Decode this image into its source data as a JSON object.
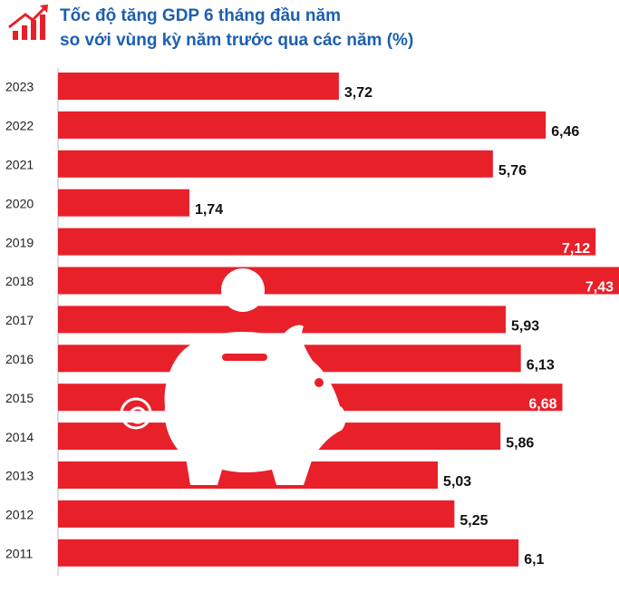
{
  "chart_data": {
    "type": "bar",
    "orientation": "horizontal",
    "title": [
      "Tốc độ tăng GDP 6 tháng đầu năm",
      "so với vùng kỳ năm trước qua các năm (%)"
    ],
    "categories": [
      "2023",
      "2022",
      "2021",
      "2020",
      "2019",
      "2018",
      "2017",
      "2016",
      "2015",
      "2014",
      "2013",
      "2012",
      "2011"
    ],
    "values": [
      3.72,
      6.46,
      5.76,
      1.74,
      7.12,
      7.43,
      5.93,
      6.13,
      6.68,
      5.86,
      5.03,
      5.25,
      6.1
    ],
    "value_labels": [
      "3,72",
      "6,46",
      "5,76",
      "1,74",
      "7,12",
      "7,43",
      "5,93",
      "6,13",
      "6,68",
      "5,86",
      "5,03",
      "5,25",
      "6,1"
    ],
    "color": "#e8202a"
  }
}
